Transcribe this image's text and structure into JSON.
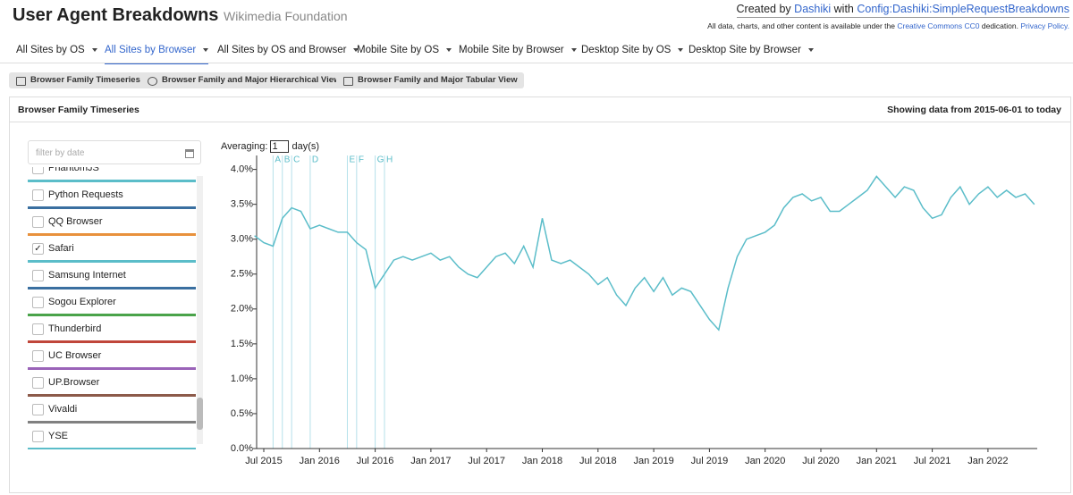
{
  "header": {
    "title": "User Agent Breakdowns",
    "subtitle": "Wikimedia Foundation",
    "credit": {
      "prefix": "Created by",
      "author": "Dashiki",
      "with": "with",
      "config": "Config:Dashiki:SimpleRequestBreakdowns"
    },
    "license": {
      "text": "All data, charts, and other content is available under the",
      "link": "Creative Commons CC0",
      "after": "dedication.",
      "privacy": "Privacy Policy."
    }
  },
  "tabs": {
    "items": [
      "All Sites by OS",
      "All Sites by Browser",
      "All Sites by OS and Browser",
      "Mobile Site by OS",
      "Mobile Site by Browser",
      "Desktop Site by OS",
      "Desktop Site by Browser"
    ],
    "active": 1
  },
  "views": [
    "Browser Family Timeseries",
    "Browser Family and Major Hierarchical View",
    "Browser Family and Major Tabular View"
  ],
  "panel": {
    "title": "Browser Family Timeseries",
    "range": "Showing data from 2015-06-01 to today"
  },
  "filter": {
    "placeholder": "filter by date"
  },
  "browsers": [
    {
      "name": "PhantomJS",
      "color": "#5bbdc9",
      "checked": false
    },
    {
      "name": "Python Requests",
      "color": "#3a6fa0",
      "checked": false
    },
    {
      "name": "QQ Browser",
      "color": "#e8913c",
      "checked": false
    },
    {
      "name": "Safari",
      "color": "#5bbdc9",
      "checked": true
    },
    {
      "name": "Samsung Internet",
      "color": "#3a6fa0",
      "checked": false
    },
    {
      "name": "Sogou Explorer",
      "color": "#4aa34a",
      "checked": false
    },
    {
      "name": "Thunderbird",
      "color": "#c0463a",
      "checked": false
    },
    {
      "name": "UC Browser",
      "color": "#9a63b8",
      "checked": false
    },
    {
      "name": "UP.Browser",
      "color": "#8c5a4a",
      "checked": false
    },
    {
      "name": "Vivaldi",
      "color": "#808080",
      "checked": false
    },
    {
      "name": "YSE",
      "color": "#5bbdc9",
      "checked": false
    }
  ],
  "averaging": {
    "label": "Averaging:",
    "value": "1",
    "unit": "day(s)"
  },
  "chart_data": {
    "type": "line",
    "x": [
      "2015-06",
      "2015-07",
      "2015-08",
      "2015-09",
      "2015-10",
      "2015-11",
      "2015-12",
      "2016-01",
      "2016-02",
      "2016-03",
      "2016-04",
      "2016-05",
      "2016-06",
      "2016-07",
      "2016-08",
      "2016-09",
      "2016-10",
      "2016-11",
      "2016-12",
      "2017-01",
      "2017-02",
      "2017-03",
      "2017-04",
      "2017-05",
      "2017-06",
      "2017-07",
      "2017-08",
      "2017-09",
      "2017-10",
      "2017-11",
      "2017-12",
      "2018-01",
      "2018-02",
      "2018-03",
      "2018-04",
      "2018-05",
      "2018-06",
      "2018-07",
      "2018-08",
      "2018-09",
      "2018-10",
      "2018-11",
      "2018-12",
      "2019-01",
      "2019-02",
      "2019-03",
      "2019-04",
      "2019-05",
      "2019-06",
      "2019-07",
      "2019-08",
      "2019-09",
      "2019-10",
      "2019-11",
      "2019-12",
      "2020-01",
      "2020-02",
      "2020-03",
      "2020-04",
      "2020-05",
      "2020-06",
      "2020-07",
      "2020-08",
      "2020-09",
      "2020-10",
      "2020-11",
      "2020-12",
      "2021-01",
      "2021-02",
      "2021-03",
      "2021-04",
      "2021-05",
      "2021-06",
      "2021-07",
      "2021-08",
      "2021-09",
      "2021-10",
      "2021-11",
      "2021-12",
      "2022-01",
      "2022-02",
      "2022-03",
      "2022-04",
      "2022-05",
      "2022-06"
    ],
    "series": [
      {
        "name": "Safari",
        "color": "#5bbdc9",
        "values": [
          3.05,
          2.95,
          2.9,
          3.3,
          3.45,
          3.4,
          3.15,
          3.2,
          3.15,
          3.1,
          3.1,
          2.95,
          2.85,
          2.3,
          2.5,
          2.7,
          2.75,
          2.7,
          2.75,
          2.8,
          2.7,
          2.75,
          2.6,
          2.5,
          2.45,
          2.6,
          2.75,
          2.8,
          2.65,
          2.9,
          2.6,
          3.3,
          2.7,
          2.65,
          2.7,
          2.6,
          2.5,
          2.35,
          2.45,
          2.2,
          2.05,
          2.3,
          2.45,
          2.25,
          2.45,
          2.2,
          2.3,
          2.25,
          2.05,
          1.85,
          1.7,
          2.3,
          2.75,
          3.0,
          3.05,
          3.1,
          3.2,
          3.45,
          3.6,
          3.65,
          3.55,
          3.6,
          3.4,
          3.4,
          3.5,
          3.6,
          3.7,
          3.9,
          3.75,
          3.6,
          3.75,
          3.7,
          3.45,
          3.3,
          3.35,
          3.6,
          3.75,
          3.5,
          3.65,
          3.75,
          3.6,
          3.7,
          3.6,
          3.65,
          3.5
        ]
      }
    ],
    "annotations": [
      {
        "label": "A",
        "x": "2015-08"
      },
      {
        "label": "B",
        "x": "2015-09"
      },
      {
        "label": "C",
        "x": "2015-10"
      },
      {
        "label": "D",
        "x": "2015-12"
      },
      {
        "label": "E",
        "x": "2016-04"
      },
      {
        "label": "F",
        "x": "2016-05"
      },
      {
        "label": "G",
        "x": "2016-07"
      },
      {
        "label": "H",
        "x": "2016-08"
      }
    ],
    "ylim": [
      0,
      4.2
    ],
    "yticks": [
      {
        "value": 0,
        "label": "0.0%"
      },
      {
        "value": 0.5,
        "label": "0.5%"
      },
      {
        "value": 1,
        "label": "1.0%"
      },
      {
        "value": 1.5,
        "label": "1.5%"
      },
      {
        "value": 2,
        "label": "2.0%"
      },
      {
        "value": 2.5,
        "label": "2.5%"
      },
      {
        "value": 3,
        "label": "3.0%"
      },
      {
        "value": 3.5,
        "label": "3.5%"
      },
      {
        "value": 4,
        "label": "4.0%"
      }
    ],
    "xticks": [
      {
        "value": "2015-07",
        "label": "Jul 2015"
      },
      {
        "value": "2016-01",
        "label": "Jan 2016"
      },
      {
        "value": "2016-07",
        "label": "Jul 2016"
      },
      {
        "value": "2017-01",
        "label": "Jan 2017"
      },
      {
        "value": "2017-07",
        "label": "Jul 2017"
      },
      {
        "value": "2018-01",
        "label": "Jan 2018"
      },
      {
        "value": "2018-07",
        "label": "Jul 2018"
      },
      {
        "value": "2019-01",
        "label": "Jan 2019"
      },
      {
        "value": "2019-07",
        "label": "Jul 2019"
      },
      {
        "value": "2020-01",
        "label": "Jan 2020"
      },
      {
        "value": "2020-07",
        "label": "Jul 2020"
      },
      {
        "value": "2021-01",
        "label": "Jan 2021"
      },
      {
        "value": "2021-07",
        "label": "Jul 2021"
      },
      {
        "value": "2022-01",
        "label": "Jan 2022"
      }
    ]
  }
}
